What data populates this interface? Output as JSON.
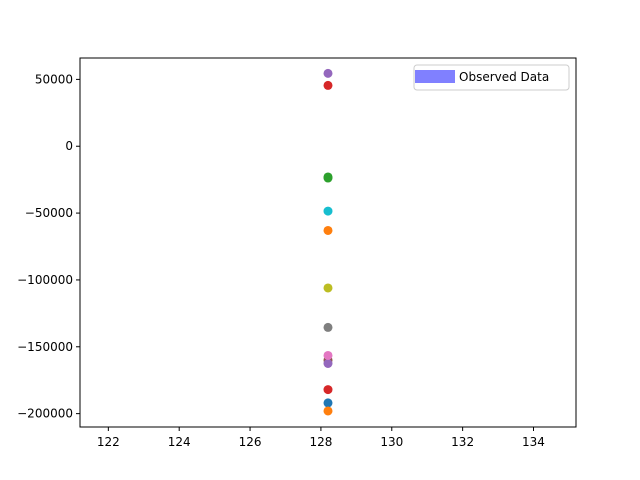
{
  "chart_data": {
    "type": "scatter",
    "title": "",
    "xlabel": "",
    "ylabel": "",
    "xlim": [
      121.2,
      135.2
    ],
    "ylim": [
      -210000,
      66000
    ],
    "xticks": [
      122,
      124,
      126,
      128,
      130,
      132,
      134
    ],
    "yticks": [
      50000,
      0,
      -50000,
      -100000,
      -150000,
      -200000
    ],
    "xtick_labels": [
      "122",
      "124",
      "126",
      "128",
      "130",
      "132",
      "134"
    ],
    "ytick_labels": [
      "50000",
      "0",
      "−50000",
      "−100000",
      "−150000",
      "−200000"
    ],
    "grid": false,
    "legend": {
      "placement": "top-right",
      "entries": [
        {
          "label": "Observed Data",
          "color": "#8080ff"
        }
      ]
    },
    "points": [
      {
        "x": 128.2,
        "y": 54500,
        "color": "#9467bd"
      },
      {
        "x": 128.2,
        "y": 45500,
        "color": "#d62728"
      },
      {
        "x": 128.2,
        "y": -23000,
        "color": "#2ca02c"
      },
      {
        "x": 128.2,
        "y": -23800,
        "color": "#2ca02c"
      },
      {
        "x": 128.2,
        "y": -48500,
        "color": "#17becf"
      },
      {
        "x": 128.2,
        "y": -63000,
        "color": "#ff7f0e"
      },
      {
        "x": 128.2,
        "y": -106000,
        "color": "#bcbd22"
      },
      {
        "x": 128.2,
        "y": -135500,
        "color": "#7f7f7f"
      },
      {
        "x": 128.2,
        "y": -160000,
        "color": "#8c564b"
      },
      {
        "x": 128.2,
        "y": -162500,
        "color": "#9467bd"
      },
      {
        "x": 128.2,
        "y": -156500,
        "color": "#e377c2"
      },
      {
        "x": 128.2,
        "y": -182000,
        "color": "#d62728"
      },
      {
        "x": 128.2,
        "y": -192000,
        "color": "#1f77b4"
      },
      {
        "x": 128.2,
        "y": -198000,
        "color": "#ff7f0e"
      }
    ]
  }
}
